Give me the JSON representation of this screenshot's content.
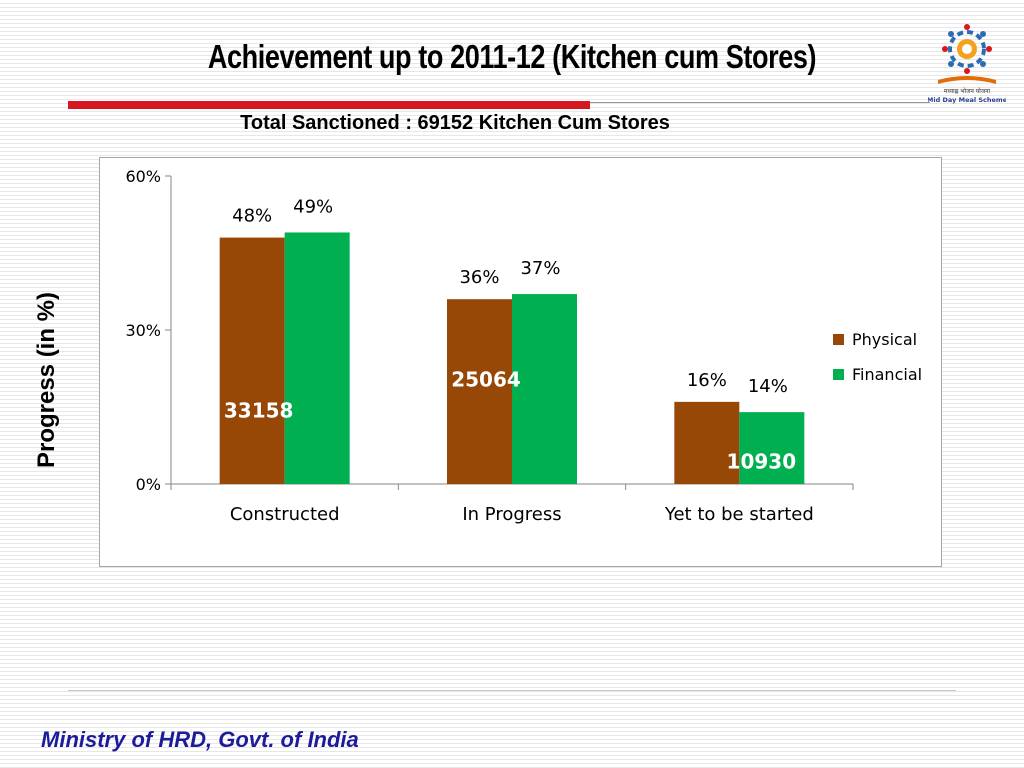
{
  "slide": {
    "title": "Achievement up to 2011-12 (Kitchen cum Stores)",
    "subtitle": "Total Sanctioned :  69152  Kitchen Cum Stores",
    "footer": "Ministry of HRD, Govt. of India",
    "logo_text_line1": "मध्याह्न भोजन योजना",
    "logo_text_line2": "Mid Day Meal Scheme"
  },
  "colors": {
    "physical": "#974706",
    "financial": "#00b050",
    "accent_red": "#d7171f",
    "footer_blue": "#1c1c9b",
    "count_label_fill": "#ffffff"
  },
  "chart_data": {
    "type": "bar",
    "title": "",
    "xlabel": "",
    "ylabel": "Progress (in %)",
    "categories": [
      "Constructed",
      "In Progress",
      "Yet to be started"
    ],
    "series": [
      {
        "name": "Physical",
        "values": [
          48,
          36,
          16
        ],
        "labels": [
          "48%",
          "36%",
          "16%"
        ]
      },
      {
        "name": "Financial",
        "values": [
          49,
          37,
          14
        ],
        "labels": [
          "49%",
          "37%",
          "14%"
        ]
      }
    ],
    "count_labels": [
      "33158",
      "25064",
      "10930"
    ],
    "ylim": [
      0,
      60
    ],
    "yticks": [
      "0%",
      "30%",
      "60%"
    ],
    "grid": false,
    "legend_position": "right"
  }
}
